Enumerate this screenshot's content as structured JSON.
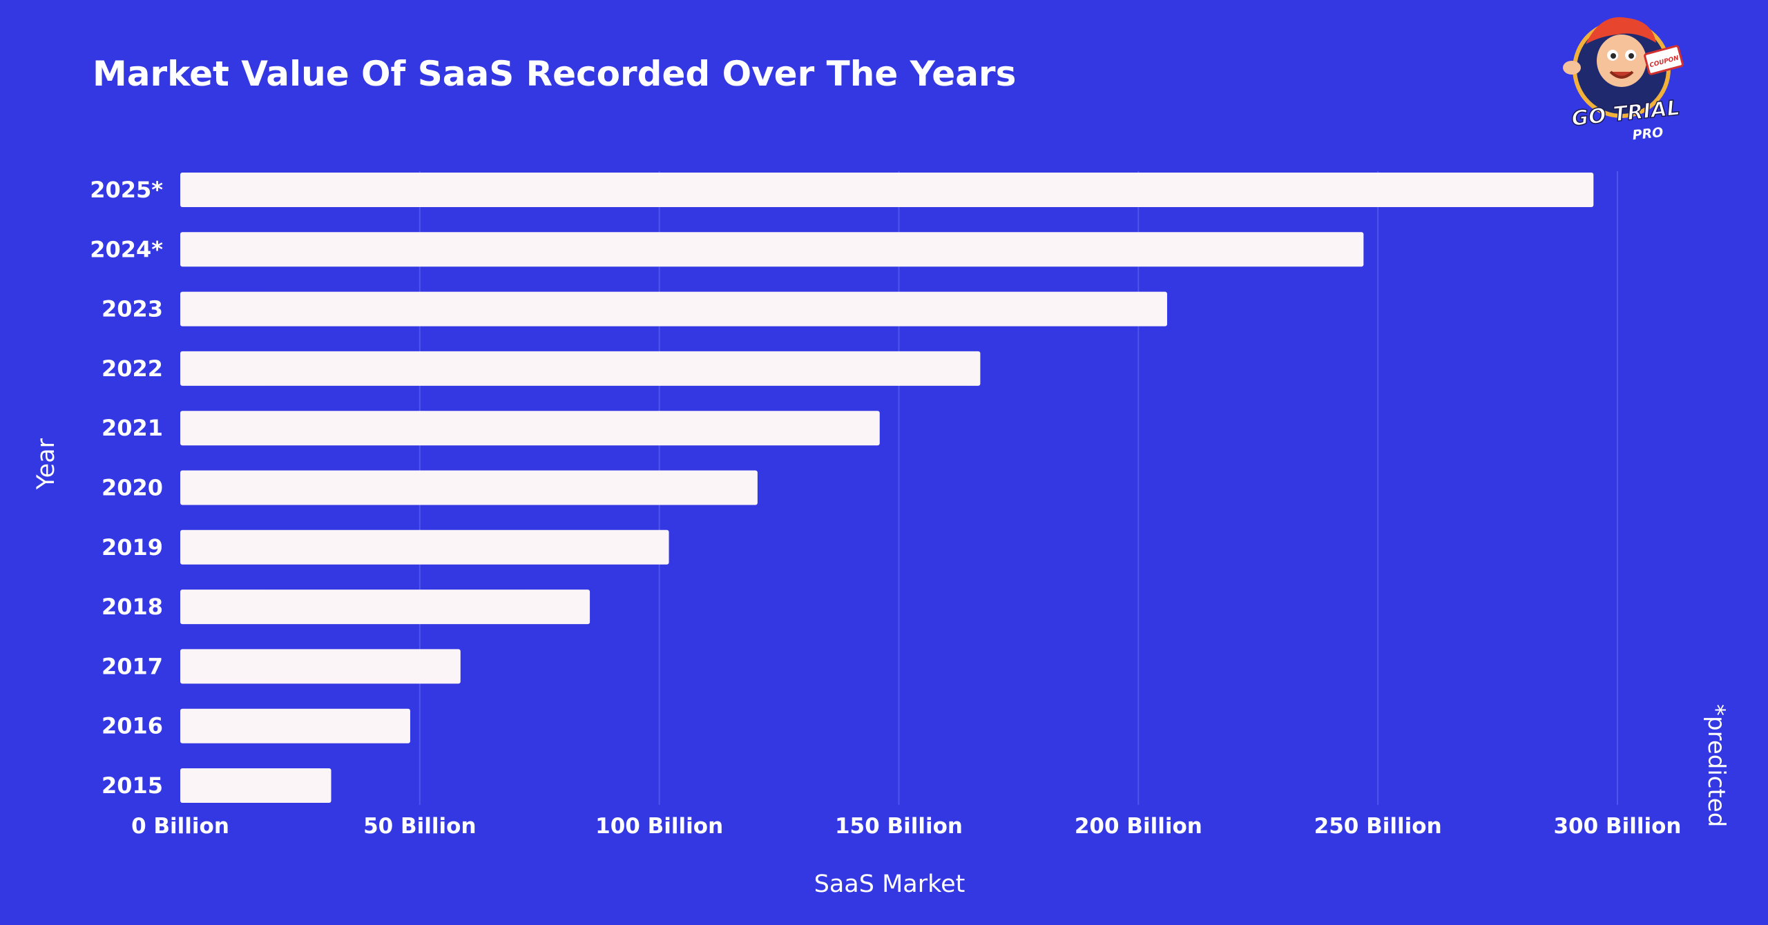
{
  "colors": {
    "background": "#3438e3",
    "bar": "#fcf5f7",
    "grid": "#4f54ec",
    "text": "#ffffff"
  },
  "logo": {
    "icon": "cartoon-mascot-icon",
    "line1": "GO TRIAL",
    "line2": "PRO",
    "tag": "COUPON"
  },
  "note": "*predicted",
  "chart_data": {
    "type": "bar",
    "orientation": "horizontal",
    "title": "Market Value Of SaaS Recorded Over The Years",
    "xlabel": "SaaS Market",
    "ylabel": "Year",
    "categories": [
      "2025*",
      "2024*",
      "2023",
      "2022",
      "2021",
      "2020",
      "2019",
      "2018",
      "2017",
      "2016",
      "2015"
    ],
    "values": [
      295,
      247,
      206,
      167,
      146,
      120.5,
      102,
      85.5,
      58.5,
      48,
      31.5
    ],
    "xlim": [
      0,
      300
    ],
    "xticks": [
      0,
      50,
      100,
      150,
      200,
      250,
      300
    ],
    "xtick_labels": [
      "0 Billion",
      "50 Billion",
      "100 Billion",
      "150 Billion",
      "200 Billion",
      "250 Billion",
      "300 Billion"
    ],
    "grid": "vertical",
    "legend": "none"
  }
}
